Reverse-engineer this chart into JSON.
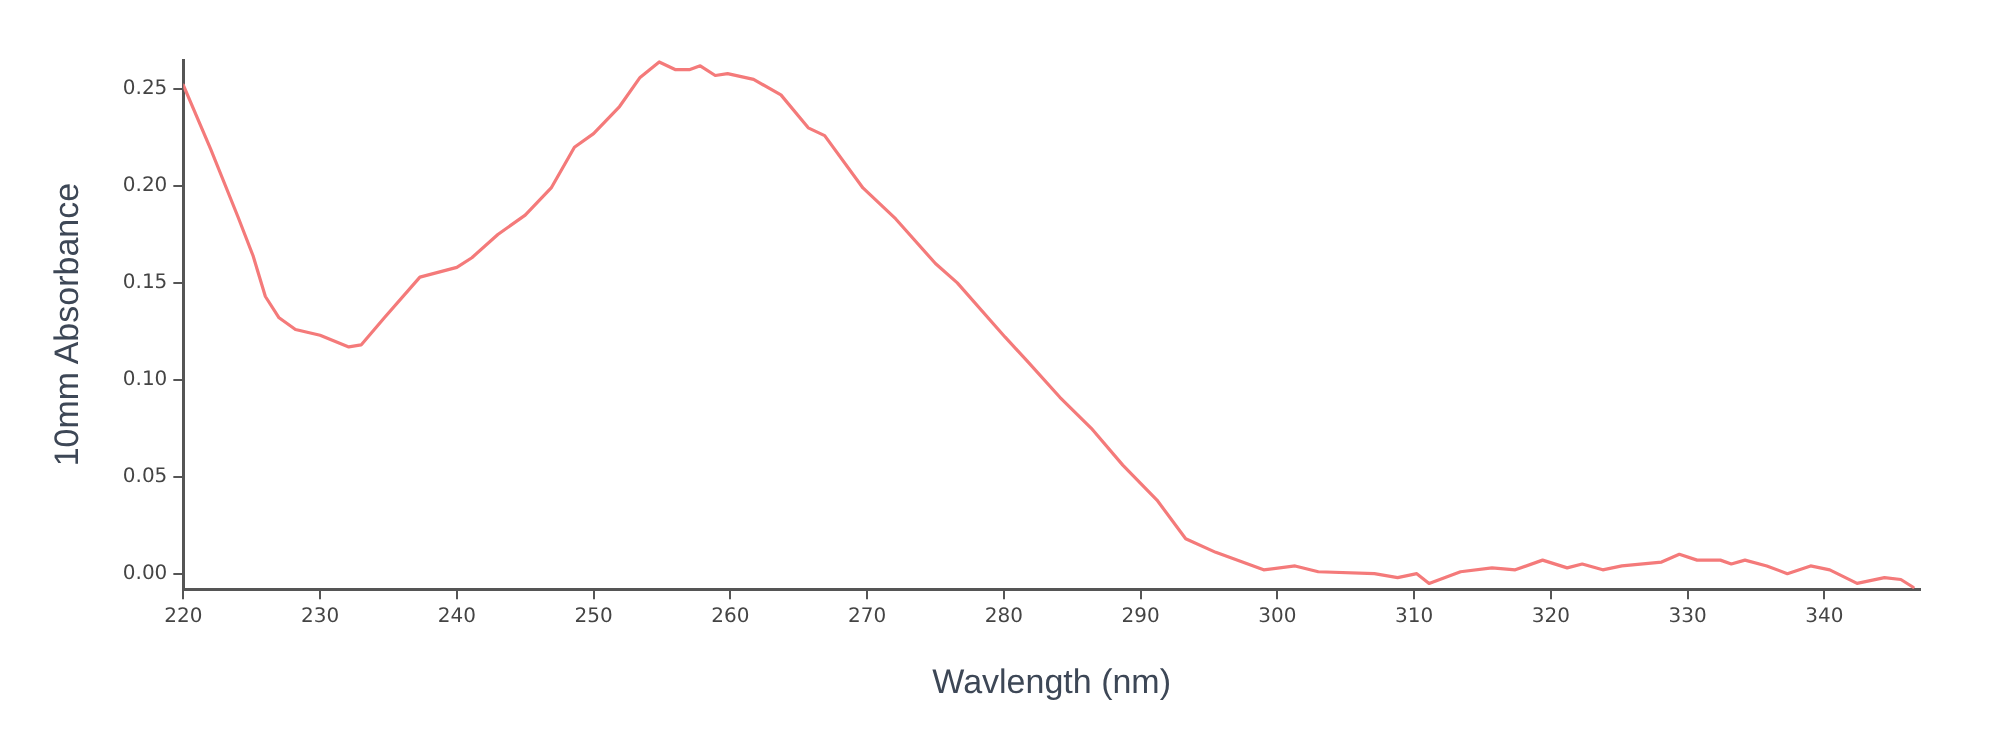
{
  "chart_data": {
    "type": "line",
    "xlabel": "Wavlength (nm)",
    "ylabel": "10mm Absorbance",
    "xlim": [
      220,
      347
    ],
    "ylim": [
      -0.008,
      0.265
    ],
    "xticks": [
      220,
      230,
      240,
      250,
      260,
      270,
      280,
      290,
      300,
      310,
      320,
      330,
      340
    ],
    "yticks": [
      {
        "value": 0,
        "label": "0.00"
      },
      {
        "value": 0.05,
        "label": "0.05"
      },
      {
        "value": 0.1,
        "label": "0.10"
      },
      {
        "value": 0.15,
        "label": "0.15"
      },
      {
        "value": 0.2,
        "label": "0.20"
      },
      {
        "value": 0.25,
        "label": "0.25"
      }
    ],
    "grid": false,
    "legend": false,
    "marker": "none",
    "line_style": "solid",
    "series": [
      {
        "color": "#f47a7a",
        "x": [
          220,
          222,
          224,
          225.1,
          226,
          227,
          228.2,
          230,
          232.1,
          233,
          234.7,
          237.3,
          240,
          241.1,
          243,
          245,
          246.9,
          248.6,
          250,
          251.9,
          253.4,
          254.8,
          256,
          257,
          257.8,
          258.9,
          259.8,
          261.7,
          263.7,
          265.7,
          266.9,
          269.7,
          272.1,
          275,
          276.6,
          280.1,
          281.8,
          284.1,
          286.4,
          288.7,
          291.2,
          293.3,
          295.5,
          299,
          301.3,
          303,
          307.1,
          308.8,
          310.2,
          311.1,
          313.4,
          315.7,
          317.4,
          319.4,
          321.2,
          322.3,
          323.8,
          325.2,
          328.1,
          329.4,
          330.7,
          332.4,
          333.2,
          334.2,
          335.8,
          337.3,
          339,
          340.4,
          342.4,
          344.4,
          345.6,
          346.5
        ],
        "values": [
          0.252,
          0.219,
          0.184,
          0.164,
          0.143,
          0.132,
          0.126,
          0.123,
          0.117,
          0.118,
          0.132,
          0.153,
          0.158,
          0.163,
          0.175,
          0.185,
          0.199,
          0.22,
          0.227,
          0.241,
          0.256,
          0.264,
          0.26,
          0.26,
          0.262,
          0.257,
          0.258,
          0.255,
          0.247,
          0.23,
          0.226,
          0.199,
          0.183,
          0.16,
          0.15,
          0.122,
          0.109,
          0.091,
          0.075,
          0.056,
          0.038,
          0.018,
          0.011,
          0.002,
          0.004,
          0.001,
          0,
          -0.002,
          0,
          -0.005,
          0.001,
          0.003,
          0.002,
          0.007,
          0.003,
          0.005,
          0.002,
          0.004,
          0.006,
          0.01,
          0.007,
          0.007,
          0.005,
          0.007,
          0.004,
          0,
          0.004,
          0.002,
          -0.005,
          -0.002,
          -0.003,
          -0.007
        ]
      }
    ]
  }
}
